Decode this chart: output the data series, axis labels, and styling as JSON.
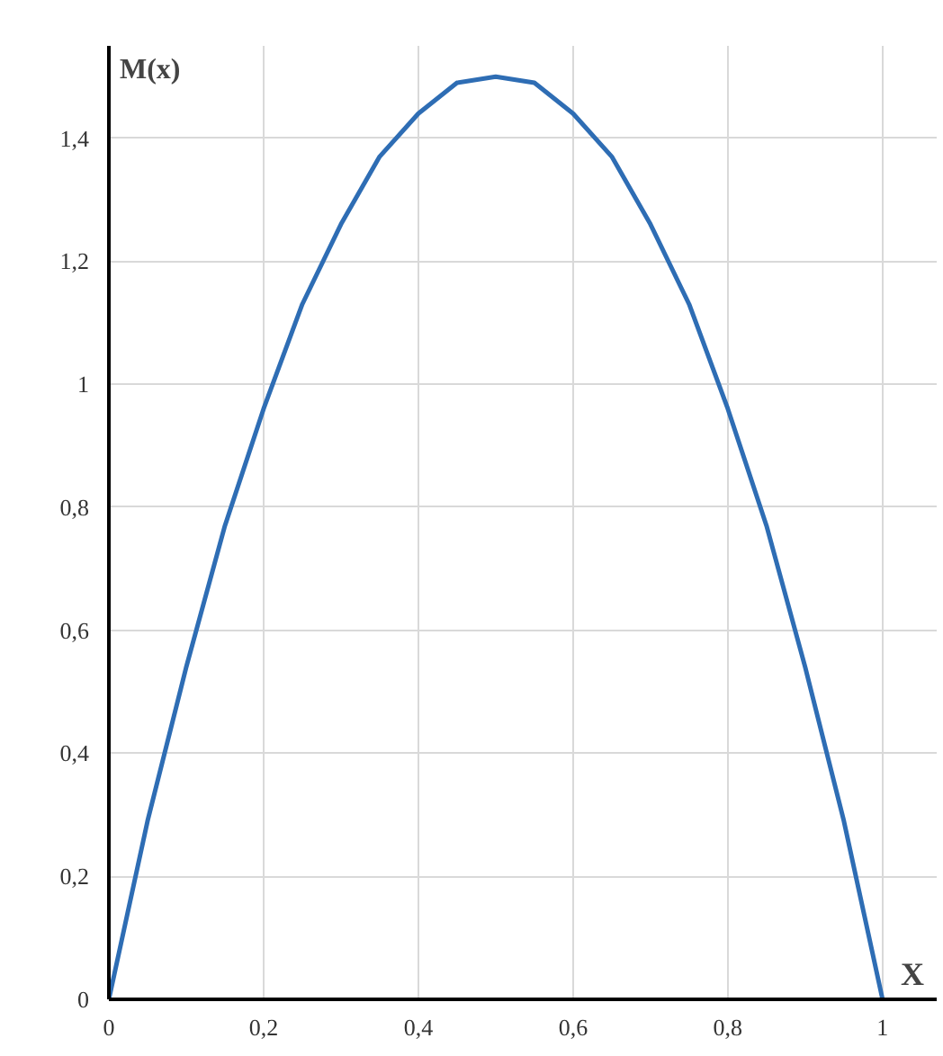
{
  "chart_data": {
    "type": "line",
    "xlabel": "X",
    "ylabel": "M(x)",
    "x": [
      0,
      0.05,
      0.1,
      0.15,
      0.2,
      0.25,
      0.3,
      0.35,
      0.4,
      0.45,
      0.5,
      0.55,
      0.6,
      0.65,
      0.7,
      0.75,
      0.8,
      0.85,
      0.9,
      0.95,
      1
    ],
    "series": [
      {
        "color": "#2e6db4",
        "values": [
          0,
          0.29,
          0.54,
          0.77,
          0.96,
          1.13,
          1.26,
          1.37,
          1.44,
          1.49,
          1.5,
          1.49,
          1.44,
          1.37,
          1.26,
          1.13,
          0.96,
          0.77,
          0.54,
          0.29,
          0
        ]
      }
    ],
    "xlim": [
      0,
      1.07
    ],
    "ylim": [
      0,
      1.55
    ],
    "xticks": [
      0,
      {
        "value": 0.2,
        "label": "0,2"
      },
      {
        "value": 0.4,
        "label": "0,4"
      },
      {
        "value": 0.6,
        "label": "0,6"
      },
      {
        "value": 0.8,
        "label": "0,8"
      },
      1
    ],
    "yticks": [
      0,
      {
        "value": 0.2,
        "label": "0,2"
      },
      {
        "value": 0.4,
        "label": "0,4"
      },
      {
        "value": 0.6,
        "label": "0,6"
      },
      {
        "value": 0.8,
        "label": "0,8"
      },
      1,
      {
        "value": 1.2,
        "label": "1,2"
      },
      {
        "value": 1.4,
        "label": "1,4"
      }
    ],
    "grid": true,
    "line_style": "solid",
    "marker": "none"
  }
}
